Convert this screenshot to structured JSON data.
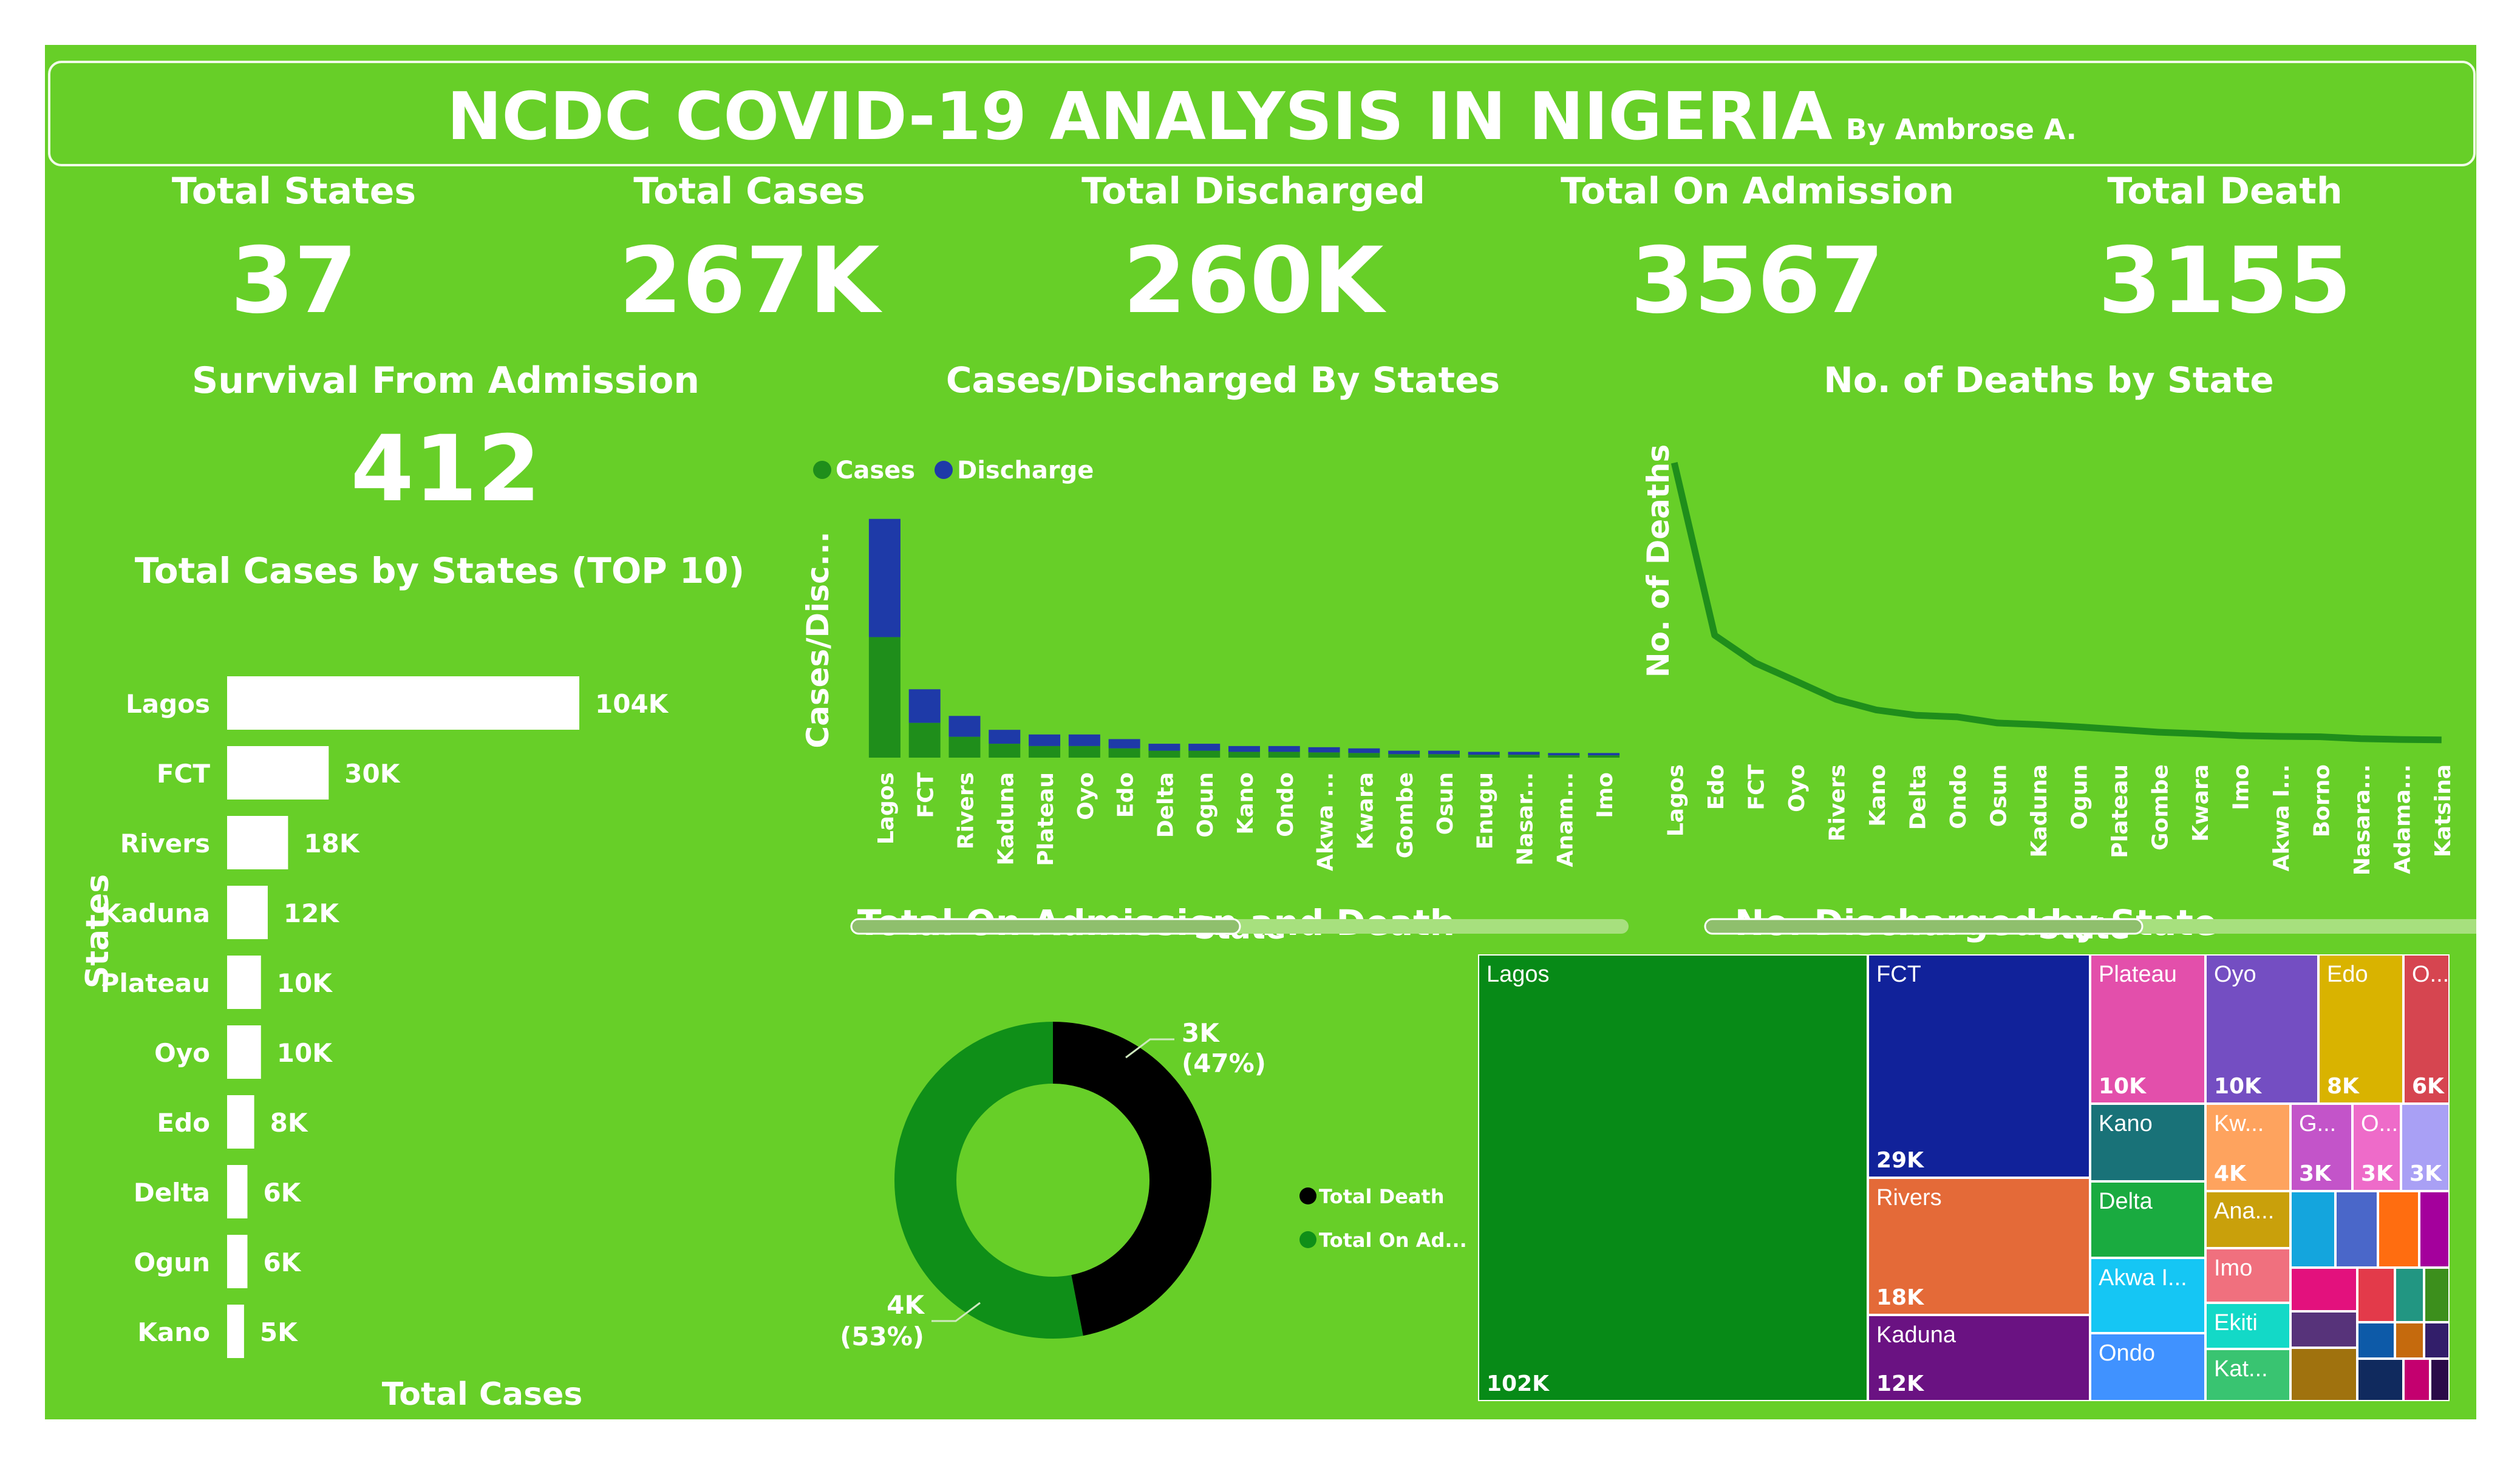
{
  "header": {
    "title": "NCDC COVID-19 ANALYSIS IN NIGERIA",
    "byline": "By Ambrose A."
  },
  "kpis": [
    {
      "label": "Total States",
      "value": "37"
    },
    {
      "label": "Total Cases",
      "value": "267K"
    },
    {
      "label": "Total Discharged",
      "value": "260K"
    },
    {
      "label": "Total On Admission",
      "value": "3567"
    },
    {
      "label": "Total Death",
      "value": "3155"
    }
  ],
  "survival": {
    "label": "Survival From Admission",
    "value": "412"
  },
  "colors": {
    "background": "#67cf28",
    "cases": "#1f8e1b",
    "discharge": "#1e3aa8",
    "death": "#000000",
    "admission": "#0f8f18"
  },
  "chart_data": [
    {
      "type": "bar",
      "orientation": "horizontal",
      "title": "Total Cases by States (TOP 10)",
      "xlabel": "Total Cases",
      "ylabel": "States",
      "categories": [
        "Lagos",
        "FCT",
        "Rivers",
        "Kaduna",
        "Plateau",
        "Oyo",
        "Edo",
        "Delta",
        "Ogun",
        "Kano"
      ],
      "values": [
        104,
        30,
        18,
        12,
        10,
        10,
        8,
        6,
        6,
        5
      ],
      "data_labels": [
        "104K",
        "30K",
        "18K",
        "12K",
        "10K",
        "10K",
        "8K",
        "6K",
        "6K",
        "5K"
      ],
      "color": "#ffffff"
    },
    {
      "type": "bar",
      "stacked": true,
      "title": "Cases/Discharged By States",
      "xlabel": "State",
      "ylabel": "Cases/Disc...",
      "legend": "top-left",
      "categories": [
        "Lagos",
        "FCT",
        "Rivers",
        "Kaduna",
        "Plateau",
        "Oyo",
        "Edo",
        "Delta",
        "Ogun",
        "Kano",
        "Ondo",
        "Akwa ...",
        "Kwara",
        "Gombe",
        "Osun",
        "Enugu",
        "Nasar...",
        "Anam...",
        "Imo"
      ],
      "series": [
        {
          "name": "Cases",
          "color": "#1f8e1b",
          "values": [
            104,
            30,
            18,
            12,
            10,
            10,
            8,
            6,
            6,
            5,
            5,
            4.5,
            4,
            3,
            3,
            2.5,
            2.5,
            2,
            2
          ]
        },
        {
          "name": "Discharge",
          "color": "#1e3aa8",
          "values": [
            102,
            29,
            18,
            12,
            10,
            10,
            8,
            6,
            6,
            5,
            5,
            4.5,
            4,
            3,
            3,
            2.5,
            2.5,
            2,
            2
          ]
        }
      ],
      "ylim": [
        0,
        220
      ]
    },
    {
      "type": "line",
      "title": "No. of Deaths by State",
      "xlabel": "State",
      "ylabel": "No. of Deaths",
      "categories": [
        "Lagos",
        "Edo",
        "FCT",
        "Oyo",
        "Rivers",
        "Kano",
        "Delta",
        "Ondo",
        "Osun",
        "Kaduna",
        "Ogun",
        "Plateau",
        "Gombe",
        "Kwara",
        "Imo",
        "Akwa I...",
        "Borno",
        "Nasara...",
        "Adama...",
        "Katsina"
      ],
      "values": [
        771,
        321,
        249,
        202,
        154,
        126,
        112,
        108,
        92,
        88,
        82,
        75,
        68,
        64,
        59,
        57,
        56,
        51,
        49,
        48
      ],
      "ylim": [
        0,
        800
      ],
      "color": "#1f8e1b"
    },
    {
      "type": "pie",
      "donut": true,
      "title": "Total On Admission and Death",
      "legend": "right",
      "categories": [
        "Total Death",
        "Total On Ad..."
      ],
      "values": [
        3155,
        3567
      ],
      "data_labels": [
        "3K",
        "4K"
      ],
      "percent_labels": [
        "(47%)",
        "(53%)"
      ],
      "colors": [
        "#000000",
        "#0f8f18"
      ]
    },
    {
      "type": "treemap",
      "title": "No. Discharged by State",
      "cells": [
        {
          "name": "Lagos",
          "value": "102K",
          "color": "#078a17"
        },
        {
          "name": "FCT",
          "value": "29K",
          "color": "#11229a"
        },
        {
          "name": "Rivers",
          "value": "18K",
          "color": "#e46a38"
        },
        {
          "name": "Kaduna",
          "value": "12K",
          "color": "#6a1282"
        },
        {
          "name": "Plateau",
          "value": "10K",
          "color": "#e34fab"
        },
        {
          "name": "Oyo",
          "value": "10K",
          "color": "#744ec2"
        },
        {
          "name": "Edo",
          "value": "8K",
          "color": "#d9b300"
        },
        {
          "name": "O...",
          "value": "6K",
          "color": "#d64550"
        },
        {
          "name": "Kano",
          "value": "",
          "color": "#197278"
        },
        {
          "name": "Delta",
          "value": "",
          "color": "#1aab40"
        },
        {
          "name": "Akwa I...",
          "value": "",
          "color": "#15c6f4"
        },
        {
          "name": "Ondo",
          "value": "",
          "color": "#4092ff"
        },
        {
          "name": "Kw...",
          "value": "4K",
          "color": "#fea35e"
        },
        {
          "name": "G...",
          "value": "3K",
          "color": "#c354c9"
        },
        {
          "name": "O...",
          "value": "3K",
          "color": "#ee6bc9"
        },
        {
          "name": "",
          "value": "3K",
          "color": "#a9a0f5"
        },
        {
          "name": "Ana...",
          "value": "",
          "color": "#c9a00b"
        },
        {
          "name": "Imo",
          "value": "",
          "color": "#f0707e"
        },
        {
          "name": "Ekiti",
          "value": "",
          "color": "#13d9c7"
        },
        {
          "name": "Kat...",
          "value": "",
          "color": "#39c471"
        }
      ]
    }
  ]
}
